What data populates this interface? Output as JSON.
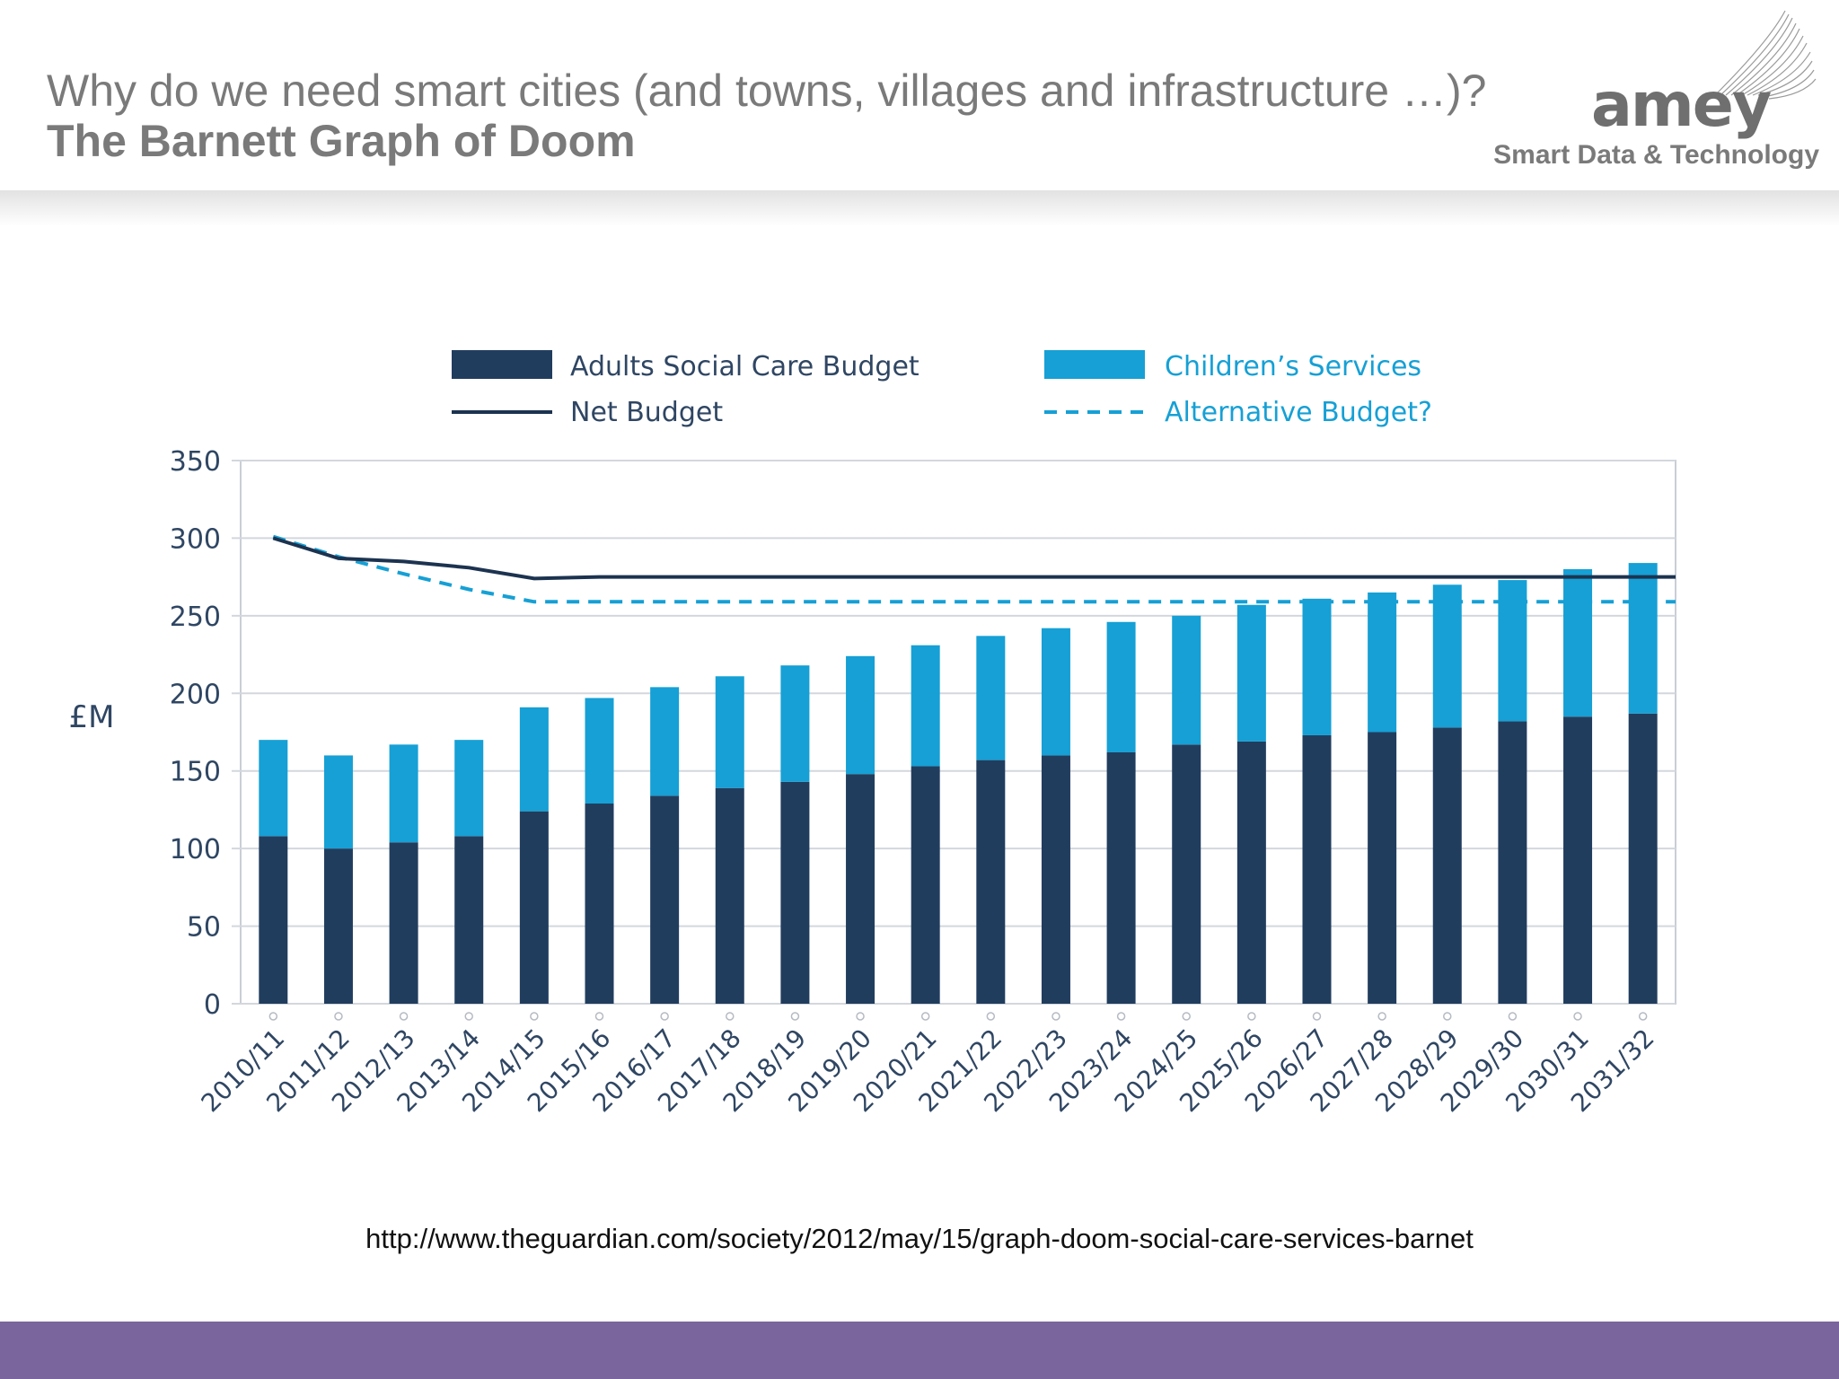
{
  "header": {
    "title_line1": "Why do we need smart cities (and towns, villages and infrastructure …)?",
    "title_line2": "The Barnett Graph of Doom",
    "logo_text": "amey",
    "tagline": "Smart Data & Technology"
  },
  "source_link": "http://www.theguardian.com/society/2012/may/15/graph-doom-social-care-services-barnet",
  "colors": {
    "adults": "#213d5e",
    "children": "#16a0d5",
    "net_line": "#1c3350",
    "alt_line": "#16a0d5",
    "footer": "#7a659c"
  },
  "chart_data": {
    "type": "bar",
    "stacked": true,
    "title": "",
    "xlabel": "",
    "ylabel": "£M",
    "ylim": [
      0,
      350
    ],
    "yticks": [
      0,
      50,
      100,
      150,
      200,
      250,
      300,
      350
    ],
    "grid": true,
    "legend_position": "top",
    "categories": [
      "2010/11",
      "2011/12",
      "2012/13",
      "2013/14",
      "2014/15",
      "2015/16",
      "2016/17",
      "2017/18",
      "2018/19",
      "2019/20",
      "2020/21",
      "2021/22",
      "2022/23",
      "2023/24",
      "2024/25",
      "2025/26",
      "2026/27",
      "2027/28",
      "2028/29",
      "2029/30",
      "2030/31",
      "2031/32"
    ],
    "series": [
      {
        "name": "Adults Social Care Budget",
        "kind": "bar",
        "values": [
          108,
          100,
          104,
          108,
          124,
          129,
          134,
          139,
          143,
          148,
          153,
          157,
          160,
          162,
          167,
          169,
          173,
          175,
          178,
          182,
          185,
          187
        ]
      },
      {
        "name": "Children’s Services",
        "kind": "bar",
        "values": [
          62,
          60,
          63,
          62,
          67,
          68,
          70,
          72,
          75,
          76,
          78,
          80,
          82,
          84,
          83,
          88,
          88,
          90,
          92,
          91,
          95,
          97
        ]
      },
      {
        "name": "Net Budget",
        "kind": "line",
        "values": [
          300,
          287,
          285,
          281,
          274,
          275,
          275,
          275,
          275,
          275,
          275,
          275,
          275,
          275,
          275,
          275,
          275,
          275,
          275,
          275,
          275,
          275
        ]
      },
      {
        "name": "Alternative Budget?",
        "kind": "dashed-line",
        "values": [
          301,
          288,
          277,
          267,
          259,
          259,
          259,
          259,
          259,
          259,
          259,
          259,
          259,
          259,
          259,
          259,
          259,
          259,
          259,
          259,
          259,
          259
        ]
      }
    ]
  }
}
